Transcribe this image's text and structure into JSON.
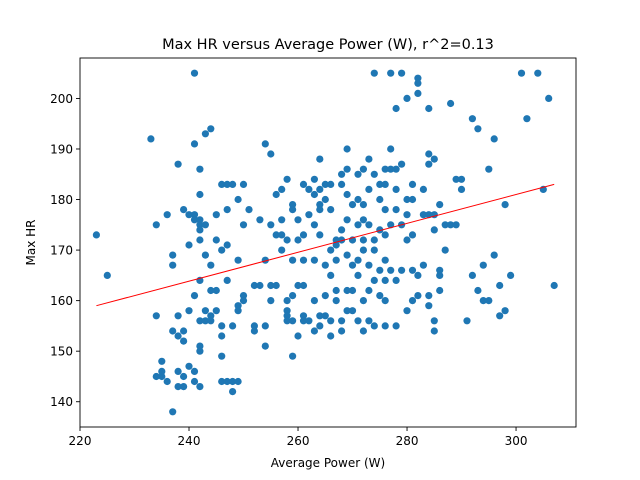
{
  "chart_data": {
    "type": "scatter",
    "title": "Max HR versus Average Power (W), r^2=0.13",
    "xlabel": "Average Power (W)",
    "ylabel": "Max HR",
    "xlim": [
      220,
      311
    ],
    "ylim": [
      135,
      208
    ],
    "xticks": [
      220,
      240,
      260,
      280,
      300
    ],
    "yticks": [
      140,
      150,
      160,
      170,
      180,
      190,
      200
    ],
    "grid": false,
    "legend": "none",
    "point_color": "#1f77b4",
    "fit_color": "#ff0000",
    "fit_line": {
      "x": [
        223,
        307
      ],
      "y": [
        159,
        183
      ]
    },
    "points": [
      [
        223,
        173
      ],
      [
        225,
        165
      ],
      [
        233,
        192
      ],
      [
        234,
        175
      ],
      [
        234,
        157
      ],
      [
        234,
        145
      ],
      [
        235,
        148
      ],
      [
        235,
        145
      ],
      [
        235,
        146
      ],
      [
        236,
        177
      ],
      [
        236,
        144
      ],
      [
        237,
        169
      ],
      [
        237,
        167
      ],
      [
        237,
        154
      ],
      [
        237,
        138
      ],
      [
        238,
        187
      ],
      [
        238,
        157
      ],
      [
        238,
        153
      ],
      [
        238,
        146
      ],
      [
        238,
        143
      ],
      [
        239,
        178
      ],
      [
        239,
        154
      ],
      [
        239,
        152
      ],
      [
        239,
        145
      ],
      [
        239,
        143
      ],
      [
        240,
        177
      ],
      [
        240,
        171
      ],
      [
        240,
        158
      ],
      [
        240,
        147
      ],
      [
        241,
        205
      ],
      [
        241,
        191
      ],
      [
        241,
        177
      ],
      [
        241,
        176
      ],
      [
        241,
        161
      ],
      [
        241,
        146
      ],
      [
        241,
        144
      ],
      [
        242,
        186
      ],
      [
        242,
        181
      ],
      [
        242,
        176
      ],
      [
        242,
        175
      ],
      [
        242,
        174
      ],
      [
        242,
        172
      ],
      [
        242,
        164
      ],
      [
        242,
        156
      ],
      [
        242,
        151
      ],
      [
        242,
        150
      ],
      [
        242,
        143
      ],
      [
        243,
        193
      ],
      [
        243,
        175
      ],
      [
        243,
        169
      ],
      [
        243,
        158
      ],
      [
        243,
        156
      ],
      [
        244,
        194
      ],
      [
        244,
        167
      ],
      [
        244,
        162
      ],
      [
        244,
        157
      ],
      [
        244,
        156
      ],
      [
        245,
        177
      ],
      [
        245,
        172
      ],
      [
        245,
        162
      ],
      [
        245,
        158
      ],
      [
        246,
        183
      ],
      [
        246,
        170
      ],
      [
        246,
        155
      ],
      [
        246,
        153
      ],
      [
        246,
        149
      ],
      [
        246,
        144
      ],
      [
        247,
        183
      ],
      [
        247,
        178
      ],
      [
        247,
        171
      ],
      [
        247,
        164
      ],
      [
        247,
        144
      ],
      [
        248,
        183
      ],
      [
        248,
        155
      ],
      [
        248,
        144
      ],
      [
        248,
        142
      ],
      [
        249,
        180
      ],
      [
        249,
        168
      ],
      [
        249,
        159
      ],
      [
        249,
        158
      ],
      [
        249,
        144
      ],
      [
        250,
        183
      ],
      [
        250,
        175
      ],
      [
        250,
        161
      ],
      [
        250,
        160
      ],
      [
        251,
        178
      ],
      [
        252,
        155
      ],
      [
        252,
        154
      ],
      [
        252,
        163
      ],
      [
        253,
        176
      ],
      [
        253,
        163
      ],
      [
        254,
        191
      ],
      [
        254,
        168
      ],
      [
        254,
        155
      ],
      [
        254,
        151
      ],
      [
        255,
        189
      ],
      [
        255,
        175
      ],
      [
        255,
        160
      ],
      [
        255,
        163
      ],
      [
        256,
        181
      ],
      [
        256,
        173
      ],
      [
        256,
        163
      ],
      [
        257,
        182
      ],
      [
        257,
        173
      ],
      [
        257,
        176
      ],
      [
        257,
        170
      ],
      [
        258,
        184
      ],
      [
        258,
        172
      ],
      [
        258,
        160
      ],
      [
        258,
        158
      ],
      [
        258,
        157
      ],
      [
        258,
        156
      ],
      [
        259,
        179
      ],
      [
        259,
        178
      ],
      [
        259,
        168
      ],
      [
        259,
        161
      ],
      [
        259,
        156
      ],
      [
        259,
        149
      ],
      [
        260,
        176
      ],
      [
        260,
        163
      ],
      [
        260,
        172
      ],
      [
        260,
        153
      ],
      [
        261,
        183
      ],
      [
        261,
        173
      ],
      [
        261,
        168
      ],
      [
        261,
        163
      ],
      [
        261,
        157
      ],
      [
        261,
        156
      ],
      [
        262,
        182
      ],
      [
        262,
        177
      ],
      [
        262,
        156
      ],
      [
        263,
        184
      ],
      [
        263,
        181
      ],
      [
        263,
        175
      ],
      [
        263,
        168
      ],
      [
        263,
        160
      ],
      [
        263,
        154
      ],
      [
        264,
        188
      ],
      [
        264,
        182
      ],
      [
        264,
        179
      ],
      [
        264,
        178
      ],
      [
        264,
        173
      ],
      [
        264,
        157
      ],
      [
        264,
        155
      ],
      [
        265,
        183
      ],
      [
        265,
        180
      ],
      [
        265,
        167
      ],
      [
        265,
        161
      ],
      [
        265,
        157
      ],
      [
        266,
        183
      ],
      [
        266,
        178
      ],
      [
        266,
        170
      ],
      [
        266,
        165
      ],
      [
        266,
        156
      ],
      [
        266,
        153
      ],
      [
        267,
        172
      ],
      [
        267,
        171
      ],
      [
        267,
        168
      ],
      [
        267,
        162
      ],
      [
        267,
        160
      ],
      [
        268,
        185
      ],
      [
        268,
        183
      ],
      [
        268,
        174
      ],
      [
        268,
        172
      ],
      [
        268,
        156
      ],
      [
        268,
        154
      ],
      [
        269,
        190
      ],
      [
        269,
        186
      ],
      [
        269,
        181
      ],
      [
        269,
        176
      ],
      [
        269,
        169
      ],
      [
        269,
        162
      ],
      [
        269,
        158
      ],
      [
        270,
        179
      ],
      [
        270,
        172
      ],
      [
        270,
        167
      ],
      [
        270,
        162
      ],
      [
        270,
        158
      ],
      [
        271,
        185
      ],
      [
        271,
        180
      ],
      [
        271,
        175
      ],
      [
        271,
        168
      ],
      [
        271,
        165
      ],
      [
        271,
        156
      ],
      [
        272,
        186
      ],
      [
        272,
        179
      ],
      [
        272,
        176
      ],
      [
        272,
        172
      ],
      [
        272,
        170
      ],
      [
        272,
        160
      ],
      [
        272,
        154
      ],
      [
        273,
        188
      ],
      [
        273,
        182
      ],
      [
        273,
        175
      ],
      [
        273,
        167
      ],
      [
        273,
        162
      ],
      [
        273,
        156
      ],
      [
        274,
        205
      ],
      [
        274,
        185
      ],
      [
        274,
        172
      ],
      [
        274,
        170
      ],
      [
        274,
        164
      ],
      [
        274,
        155
      ],
      [
        275,
        183
      ],
      [
        275,
        180
      ],
      [
        275,
        174
      ],
      [
        275,
        166
      ],
      [
        275,
        161
      ],
      [
        276,
        186
      ],
      [
        276,
        183
      ],
      [
        276,
        178
      ],
      [
        276,
        173
      ],
      [
        276,
        168
      ],
      [
        276,
        164
      ],
      [
        276,
        160
      ],
      [
        276,
        155
      ],
      [
        277,
        205
      ],
      [
        277,
        190
      ],
      [
        277,
        186
      ],
      [
        277,
        175
      ],
      [
        277,
        166
      ],
      [
        278,
        198
      ],
      [
        278,
        186
      ],
      [
        278,
        182
      ],
      [
        278,
        178
      ],
      [
        278,
        164
      ],
      [
        278,
        155
      ],
      [
        279,
        205
      ],
      [
        279,
        187
      ],
      [
        279,
        175
      ],
      [
        279,
        166
      ],
      [
        280,
        200
      ],
      [
        280,
        180
      ],
      [
        280,
        177
      ],
      [
        280,
        172
      ],
      [
        280,
        158
      ],
      [
        281,
        183
      ],
      [
        281,
        180
      ],
      [
        281,
        173
      ],
      [
        281,
        166
      ],
      [
        281,
        160
      ],
      [
        282,
        204
      ],
      [
        282,
        203
      ],
      [
        282,
        201
      ],
      [
        282,
        165
      ],
      [
        282,
        161
      ],
      [
        283,
        182
      ],
      [
        283,
        177
      ],
      [
        283,
        167
      ],
      [
        284,
        198
      ],
      [
        284,
        189
      ],
      [
        284,
        187
      ],
      [
        284,
        177
      ],
      [
        284,
        161
      ],
      [
        284,
        159
      ],
      [
        285,
        188
      ],
      [
        285,
        177
      ],
      [
        285,
        174
      ],
      [
        285,
        156
      ],
      [
        285,
        154
      ],
      [
        286,
        179
      ],
      [
        286,
        166
      ],
      [
        286,
        162
      ],
      [
        286,
        165
      ],
      [
        287,
        175
      ],
      [
        287,
        170
      ],
      [
        288,
        199
      ],
      [
        288,
        175
      ],
      [
        289,
        184
      ],
      [
        289,
        175
      ],
      [
        290,
        184
      ],
      [
        290,
        182
      ],
      [
        291,
        156
      ],
      [
        292,
        196
      ],
      [
        292,
        165
      ],
      [
        293,
        194
      ],
      [
        293,
        162
      ],
      [
        294,
        167
      ],
      [
        294,
        160
      ],
      [
        295,
        186
      ],
      [
        295,
        160
      ],
      [
        296,
        192
      ],
      [
        296,
        169
      ],
      [
        297,
        157
      ],
      [
        297,
        163
      ],
      [
        298,
        179
      ],
      [
        298,
        158
      ],
      [
        299,
        165
      ],
      [
        301,
        205
      ],
      [
        302,
        196
      ],
      [
        304,
        205
      ],
      [
        305,
        182
      ],
      [
        306,
        200
      ],
      [
        307,
        163
      ]
    ]
  }
}
